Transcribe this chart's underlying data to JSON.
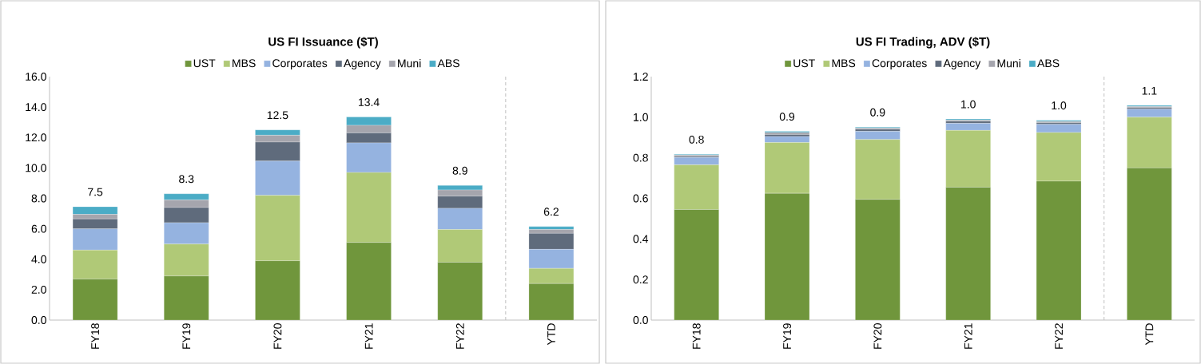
{
  "chart_data": [
    {
      "type": "bar",
      "stacked": true,
      "title": "US FI Issuance ($T)",
      "legend": "top",
      "categories": [
        "FY18",
        "FY19",
        "FY20",
        "FY21",
        "FY22",
        "YTD"
      ],
      "ylim": [
        0,
        16
      ],
      "yticks": [
        {
          "value": 0,
          "label": "0.0"
        },
        {
          "value": 2,
          "label": "2.0"
        },
        {
          "value": 4,
          "label": "4.0"
        },
        {
          "value": 6,
          "label": "6.0"
        },
        {
          "value": 8,
          "label": "8.0"
        },
        {
          "value": 10,
          "label": "10.0"
        },
        {
          "value": 12,
          "label": "12.0"
        },
        {
          "value": 14,
          "label": "14.0"
        },
        {
          "value": 16,
          "label": "16.0"
        }
      ],
      "series": [
        {
          "name": "UST",
          "color": "#70963c",
          "values": [
            2.7,
            2.9,
            3.9,
            5.1,
            3.8,
            2.4
          ]
        },
        {
          "name": "MBS",
          "color": "#b0c977",
          "values": [
            1.9,
            2.1,
            4.3,
            4.6,
            2.15,
            1.0
          ]
        },
        {
          "name": "Corporates",
          "color": "#95b3e0",
          "values": [
            1.4,
            1.4,
            2.25,
            1.95,
            1.4,
            1.25
          ]
        },
        {
          "name": "Agency",
          "color": "#5f6b7c",
          "values": [
            0.65,
            1.0,
            1.25,
            0.65,
            0.8,
            1.05
          ]
        },
        {
          "name": "Muni",
          "color": "#a5a5ad",
          "values": [
            0.3,
            0.5,
            0.45,
            0.5,
            0.4,
            0.25
          ]
        },
        {
          "name": "ABS",
          "color": "#4bacc6",
          "values": [
            0.5,
            0.4,
            0.35,
            0.55,
            0.3,
            0.2
          ]
        }
      ],
      "totals": [
        "7.5",
        "8.3",
        "12.5",
        "13.4",
        "8.9",
        "6.2"
      ]
    },
    {
      "type": "bar",
      "stacked": true,
      "title": "US FI Trading, ADV ($T)",
      "legend": "top",
      "categories": [
        "FY18",
        "FY19",
        "FY20",
        "FY21",
        "FY22",
        "YTD"
      ],
      "ylim": [
        0,
        1.2
      ],
      "yticks": [
        {
          "value": 0,
          "label": "0.0"
        },
        0.2,
        0.4,
        0.6,
        0.8,
        {
          "value": 1.0,
          "label": "1.0"
        },
        1.2
      ],
      "series": [
        {
          "name": "UST",
          "color": "#70963c",
          "values": [
            0.545,
            0.625,
            0.595,
            0.655,
            0.685,
            0.75
          ]
        },
        {
          "name": "MBS",
          "color": "#b0c977",
          "values": [
            0.22,
            0.25,
            0.295,
            0.28,
            0.24,
            0.25
          ]
        },
        {
          "name": "Corporates",
          "color": "#95b3e0",
          "values": [
            0.037,
            0.03,
            0.04,
            0.035,
            0.04,
            0.04
          ]
        },
        {
          "name": "Agency",
          "color": "#5f6b7c",
          "values": [
            0.006,
            0.01,
            0.01,
            0.01,
            0.008,
            0.007
          ]
        },
        {
          "name": "Muni",
          "color": "#a5a5ad",
          "values": [
            0.005,
            0.01,
            0.006,
            0.006,
            0.006,
            0.005
          ]
        },
        {
          "name": "ABS",
          "color": "#4bacc6",
          "values": [
            0.004,
            0.005,
            0.005,
            0.005,
            0.006,
            0.006
          ]
        }
      ],
      "totals": [
        "0.8",
        "0.9",
        "0.9",
        "1.0",
        "1.0",
        "1.1"
      ]
    }
  ]
}
